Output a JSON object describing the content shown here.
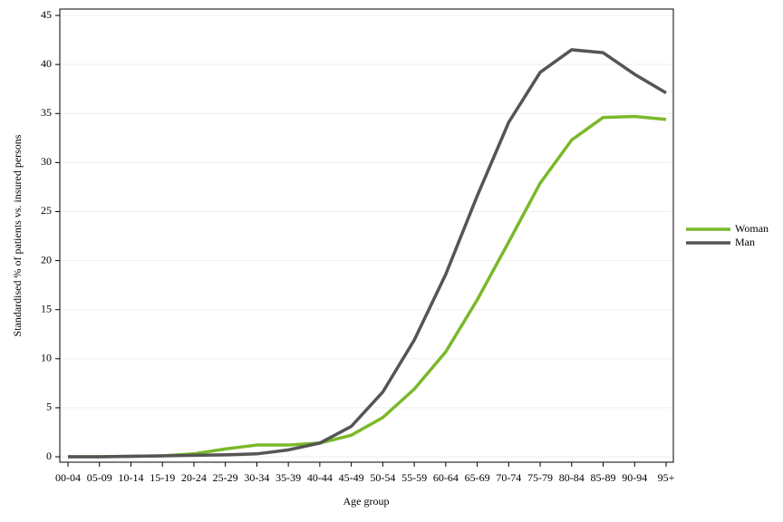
{
  "chart_data": {
    "type": "line",
    "x_label": "Age group",
    "y_label": "Standardised % of patients vs. insured persons",
    "categories": [
      "00-04",
      "05-09",
      "10-14",
      "15-19",
      "20-24",
      "25-29",
      "30-34",
      "35-39",
      "40-44",
      "45-49",
      "50-54",
      "55-59",
      "60-64",
      "65-69",
      "70-74",
      "75-79",
      "80-84",
      "85-89",
      "90-94",
      "95+"
    ],
    "series": [
      {
        "name": "Woman",
        "color": "#7ab929",
        "values": [
          0,
          0,
          0.05,
          0.1,
          0.3,
          0.8,
          1.2,
          1.2,
          1.4,
          2.2,
          4.0,
          6.9,
          10.7,
          16.0,
          21.9,
          27.9,
          32.3,
          34.6,
          34.7,
          34.4
        ]
      },
      {
        "name": "Man",
        "color": "#555555",
        "values": [
          0,
          0,
          0.05,
          0.1,
          0.15,
          0.2,
          0.3,
          0.7,
          1.4,
          3.1,
          6.6,
          11.9,
          18.6,
          26.6,
          34.1,
          39.2,
          41.5,
          41.2,
          39.0,
          37.1
        ]
      }
    ],
    "ylim": [
      -0.55,
      45.65
    ],
    "yticks": [
      0,
      5,
      10,
      15,
      20,
      25,
      30,
      35,
      40,
      45
    ],
    "grid": true,
    "legend": "right"
  }
}
